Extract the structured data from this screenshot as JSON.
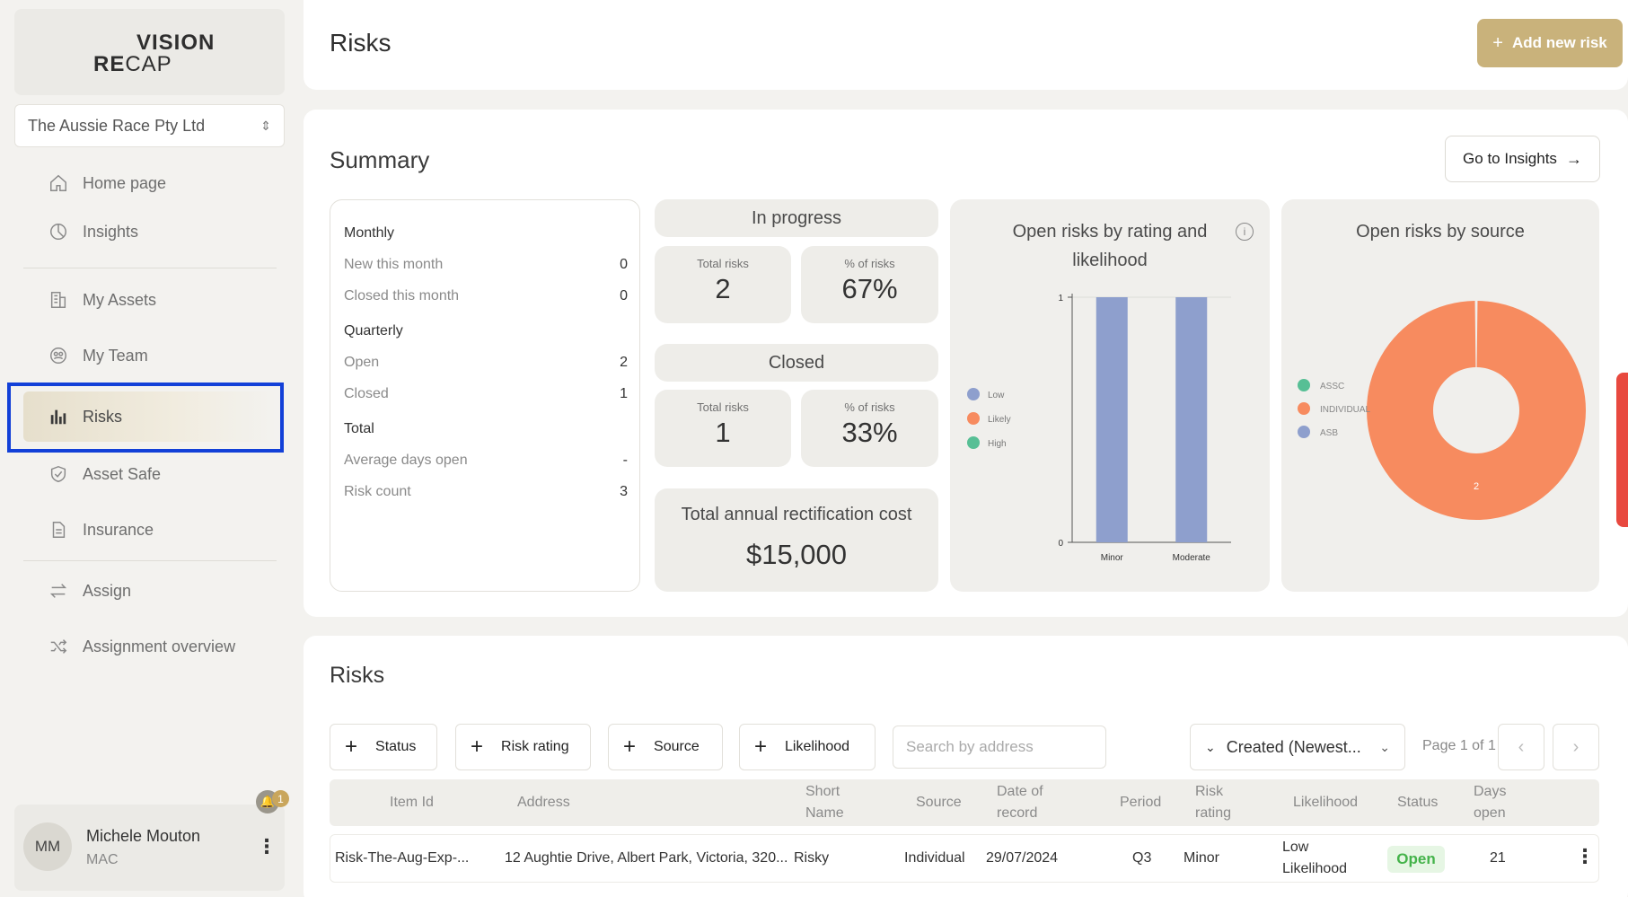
{
  "brand": {
    "vision": "VISION",
    "recap_re": "RE",
    "recap_cap": "CAP"
  },
  "org": {
    "selected": "The Aussie Race Pty Ltd"
  },
  "sidebar": {
    "items": [
      {
        "label": "Home page",
        "icon": "home-icon"
      },
      {
        "label": "Insights",
        "icon": "pie-icon"
      },
      {
        "label": "My Assets",
        "icon": "building-icon"
      },
      {
        "label": "My Team",
        "icon": "team-icon"
      },
      {
        "label": "Risks",
        "icon": "bar-chart-icon"
      },
      {
        "label": "Asset Safe",
        "icon": "shield-icon"
      },
      {
        "label": "Insurance",
        "icon": "document-icon"
      },
      {
        "label": "Assign",
        "icon": "swap-icon"
      },
      {
        "label": "Assignment overview",
        "icon": "shuffle-icon"
      }
    ]
  },
  "user": {
    "initials": "MM",
    "name": "Michele Mouton",
    "org": "MAC",
    "notifications": "1"
  },
  "header": {
    "title": "Risks",
    "add_label": "Add new risk"
  },
  "summary": {
    "title": "Summary",
    "insights_label": "Go to Insights",
    "monthly": {
      "heading": "Monthly",
      "new_label": "New this month",
      "new_value": "0",
      "closed_label": "Closed this month",
      "closed_value": "0"
    },
    "quarterly": {
      "heading": "Quarterly",
      "open_label": "Open",
      "open_value": "2",
      "closed_label": "Closed",
      "closed_value": "1"
    },
    "total": {
      "heading": "Total",
      "avg_label": "Average days open",
      "avg_value": "-",
      "count_label": "Risk count",
      "count_value": "3"
    },
    "in_progress": {
      "title": "In progress",
      "total_label": "Total risks",
      "total_value": "2",
      "pct_label": "% of risks",
      "pct_value": "67%"
    },
    "closed": {
      "title": "Closed",
      "total_label": "Total risks",
      "total_value": "1",
      "pct_label": "% of risks",
      "pct_value": "33%"
    },
    "cost": {
      "label": "Total annual rectification cost",
      "value": "$15,000"
    }
  },
  "chart_data": [
    {
      "type": "bar",
      "title": "Open risks by rating and likelihood",
      "categories": [
        "Minor",
        "Moderate"
      ],
      "series": [
        {
          "name": "Low",
          "values": [
            1,
            1
          ]
        }
      ],
      "legend": [
        "Low",
        "Likely",
        "High"
      ],
      "legend_colors": [
        "#8e9fcd",
        "#f78b5f",
        "#57bf95"
      ],
      "ylim": [
        0,
        1
      ],
      "yticks": [
        "0",
        "1"
      ],
      "legend_position": "left",
      "bar_color": "#8e9fcd"
    },
    {
      "type": "pie",
      "title": "Open risks by source",
      "labels": [
        "ASSC",
        "INDIVIDUAL",
        "ASB"
      ],
      "values": [
        0,
        2,
        0
      ],
      "colors": [
        "#57bf95",
        "#f78b5f",
        "#8e9fcd"
      ],
      "slice_label": "2",
      "legend_position": "left"
    }
  ],
  "risks": {
    "title": "Risks",
    "filters": [
      "Status",
      "Risk rating",
      "Source",
      "Likelihood"
    ],
    "search_placeholder": "Search by address",
    "sort_label": "Created (Newest...",
    "page_text": "Page 1 of 1",
    "columns": [
      "Item Id",
      "Address",
      "Short Name",
      "Source",
      "Date of record",
      "Period",
      "Risk rating",
      "Likelihood",
      "Status",
      "Days open"
    ],
    "rows": [
      {
        "item_id": "Risk-The-Aug-Exp-...",
        "address": "12 Aughtie Drive, Albert Park, Victoria, 320...",
        "short_name": "Risky",
        "source": "Individual",
        "date": "29/07/2024",
        "period": "Q3",
        "rating": "Minor",
        "likelihood_1": "Low",
        "likelihood_2": "Likelihood",
        "status": "Open",
        "days_open": "21"
      }
    ]
  }
}
